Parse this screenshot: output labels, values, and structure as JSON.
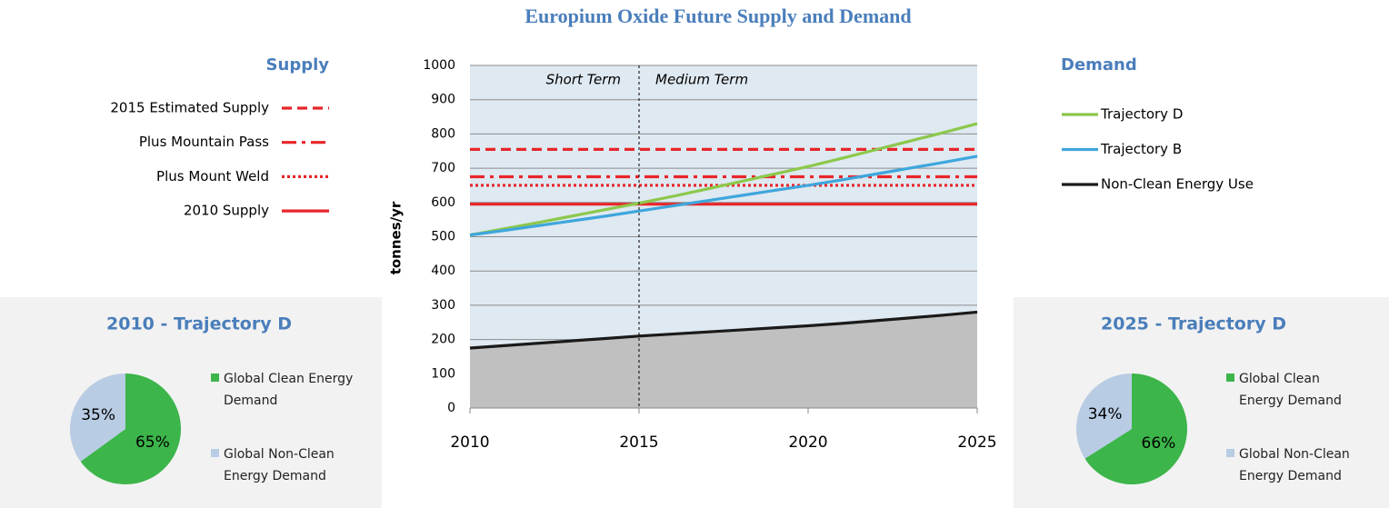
{
  "chart_data": [
    {
      "type": "line",
      "title": "Europium Oxide Future Supply and Demand",
      "ylabel": "tonnes/yr",
      "x": [
        2010,
        2011,
        2012,
        2013,
        2014,
        2015,
        2016,
        2017,
        2018,
        2019,
        2020,
        2021,
        2022,
        2023,
        2024,
        2025
      ],
      "xlim": [
        2010,
        2025
      ],
      "xticks": [
        2010,
        2015,
        2020,
        2025
      ],
      "ylim": [
        0,
        1000
      ],
      "yticks": [
        0,
        100,
        200,
        300,
        400,
        500,
        600,
        700,
        800,
        900,
        1000
      ],
      "grid": true,
      "annotations": [
        "Short Term",
        "Medium Term"
      ],
      "divider_x": 2015,
      "legend_titles": [
        "Supply",
        "Demand"
      ],
      "series": [
        {
          "name": "2015 Estimated Supply",
          "group": "Supply",
          "color": "#e8262a",
          "dash": "dashed",
          "values": [
            755,
            755,
            755,
            755,
            755,
            755,
            755,
            755,
            755,
            755,
            755,
            755,
            755,
            755,
            755,
            755
          ]
        },
        {
          "name": "Plus Mountain Pass",
          "group": "Supply",
          "color": "#e8262a",
          "dash": "dashdot",
          "values": [
            675,
            675,
            675,
            675,
            675,
            675,
            675,
            675,
            675,
            675,
            675,
            675,
            675,
            675,
            675,
            675
          ]
        },
        {
          "name": "Plus Mount Weld",
          "group": "Supply",
          "color": "#e8262a",
          "dash": "dotted",
          "values": [
            650,
            650,
            650,
            650,
            650,
            650,
            650,
            650,
            650,
            650,
            650,
            650,
            650,
            650,
            650,
            650
          ]
        },
        {
          "name": "2010 Supply",
          "group": "Supply",
          "color": "#e8262a",
          "dash": "solid",
          "values": [
            595,
            595,
            595,
            595,
            595,
            595,
            595,
            595,
            595,
            595,
            595,
            595,
            595,
            595,
            595,
            595
          ]
        },
        {
          "name": "Trajectory D",
          "group": "Demand",
          "color": "#8cc84b",
          "dash": "solid",
          "values": [
            505,
            523,
            541,
            560,
            579,
            598,
            618,
            639,
            661,
            683,
            705,
            729,
            754,
            779,
            804,
            830
          ]
        },
        {
          "name": "Trajectory B",
          "group": "Demand",
          "color": "#3ea6dc",
          "dash": "solid",
          "values": [
            505,
            518,
            532,
            546,
            560,
            575,
            590,
            605,
            620,
            635,
            650,
            666,
            683,
            700,
            717,
            735
          ]
        },
        {
          "name": "Non-Clean Energy Use",
          "group": "Demand",
          "color": "#1a1a1a",
          "dash": "solid",
          "fill": "#c0c0c0",
          "values": [
            175,
            182,
            189,
            196,
            203,
            210,
            216,
            222,
            228,
            234,
            240,
            247,
            255,
            263,
            271,
            280
          ]
        }
      ]
    },
    {
      "type": "pie",
      "title": "2010 - Trajectory D",
      "categories": [
        "Global Clean Energy Demand",
        "Global Non-Clean Energy Demand"
      ],
      "values": [
        65,
        35
      ],
      "value_labels": [
        "65%",
        "35%"
      ],
      "colors": [
        "#3cb54a",
        "#b8cce4"
      ]
    },
    {
      "type": "pie",
      "title": "2025 - Trajectory D",
      "categories": [
        "Global Clean Energy Demand",
        "Global Non-Clean Energy Demand"
      ],
      "values": [
        66,
        34
      ],
      "value_labels": [
        "66%",
        "34%"
      ],
      "colors": [
        "#3cb54a",
        "#b8cce4"
      ]
    }
  ]
}
